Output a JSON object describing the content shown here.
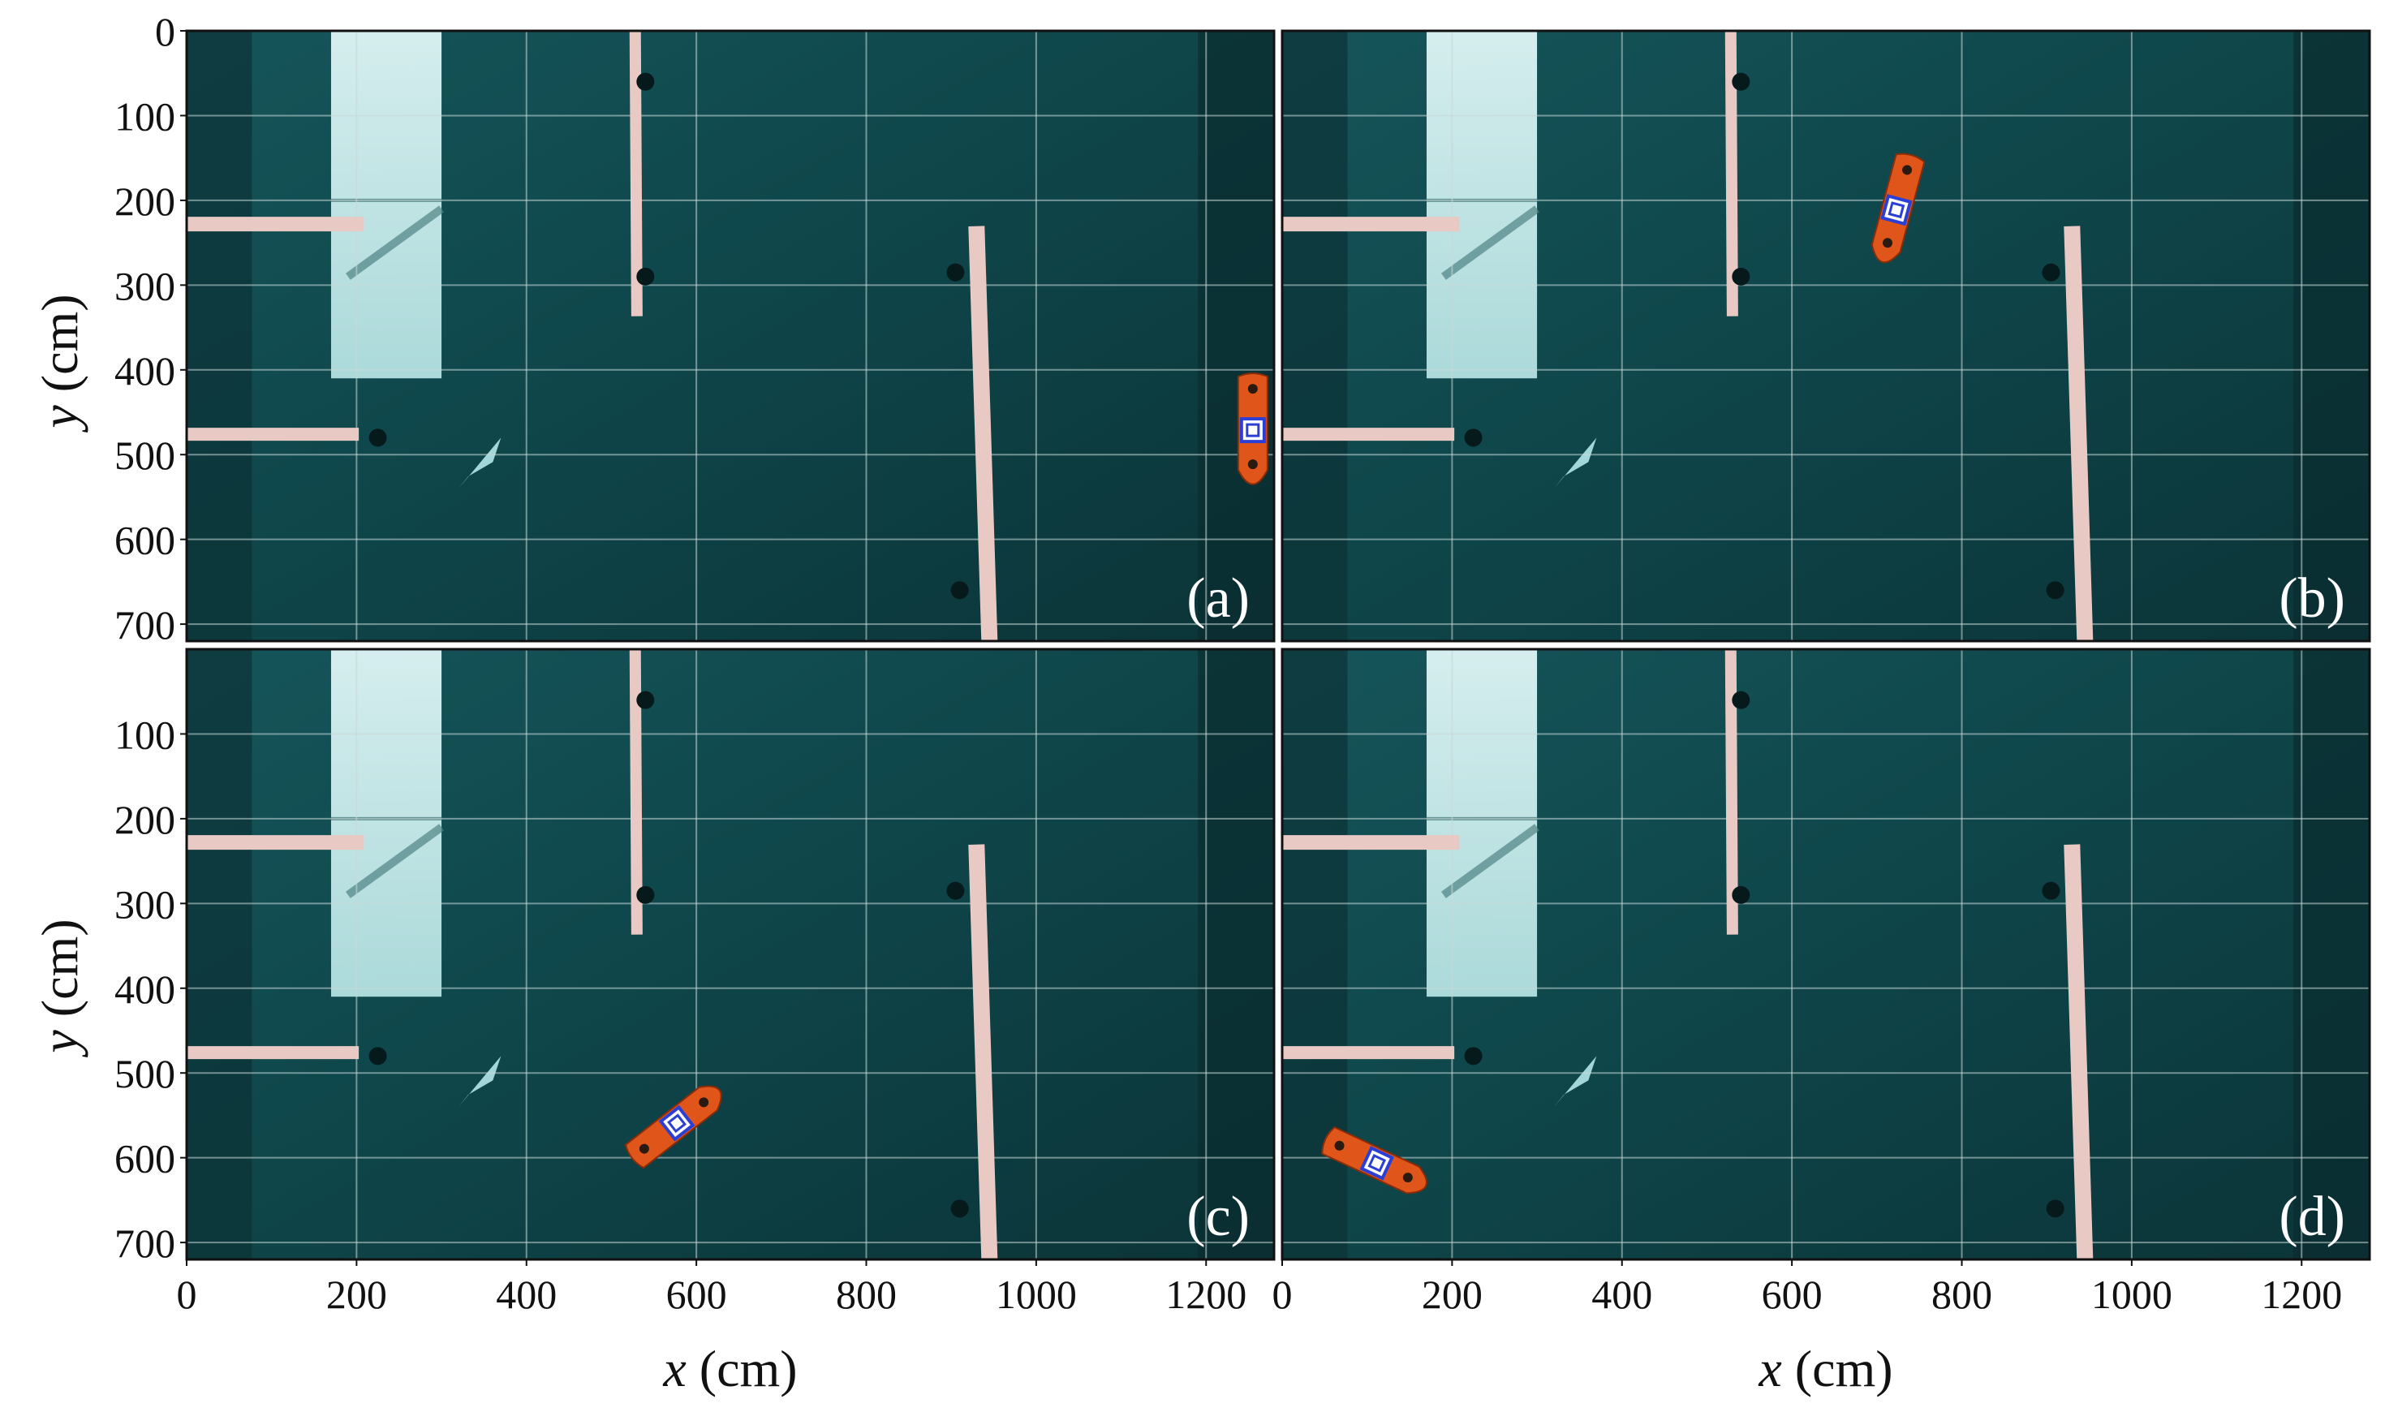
{
  "figure": {
    "x_axis_label": {
      "var": "x",
      "unit": "(cm)"
    },
    "y_axis_label": {
      "var": "y",
      "unit": "(cm)"
    },
    "x_ticks": [
      "0",
      "200",
      "400",
      "600",
      "800",
      "1000",
      "1200"
    ],
    "y_ticks_top": [
      "0",
      "100",
      "200",
      "300",
      "400",
      "500",
      "600",
      "700"
    ],
    "y_ticks_bottom": [
      "100",
      "200",
      "300",
      "400",
      "500",
      "600",
      "700"
    ],
    "x_range": [
      0,
      1280
    ],
    "y_range": [
      0,
      720
    ]
  },
  "panels": [
    {
      "label": "(a)",
      "vessel": {
        "x": 1255,
        "y": 475,
        "heading_deg": 90
      }
    },
    {
      "label": "(b)",
      "vessel": {
        "x": 722,
        "y": 215,
        "heading_deg": 105
      }
    },
    {
      "label": "(c)",
      "vessel": {
        "x": 580,
        "y": 557,
        "heading_deg": -38
      }
    },
    {
      "label": "(d)",
      "vessel": {
        "x": 115,
        "y": 608,
        "heading_deg": 25
      }
    }
  ],
  "colors": {
    "water": "#0f4a4f",
    "water_dark": "#0a2f33",
    "light_patch": "#cdeeee",
    "grid": "#c9d8d8",
    "pier": "#e8c9c4",
    "vessel": "#e0561a",
    "marker": "#2b3fd6"
  }
}
